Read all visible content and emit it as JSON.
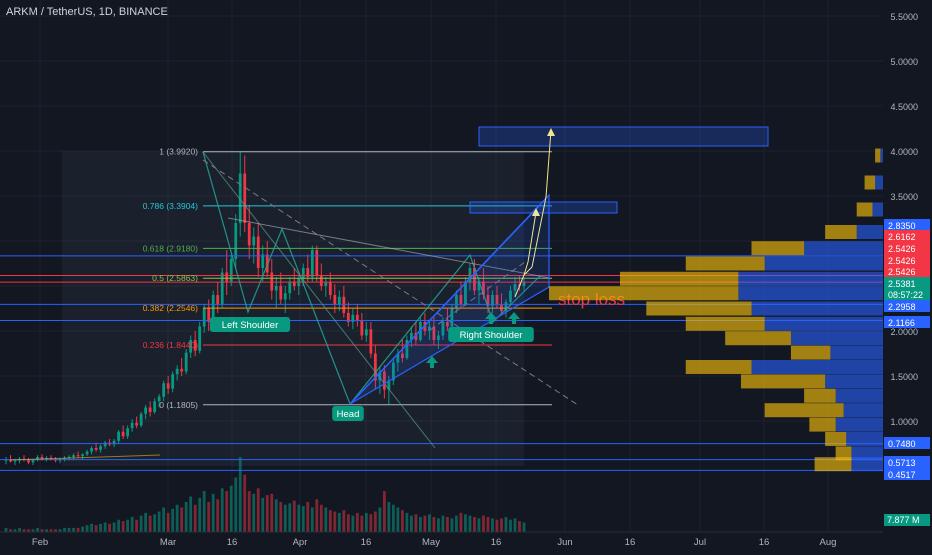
{
  "header": {
    "symbol": "ARKM / TetherUS, 1D, BINANCE"
  },
  "chart_data": {
    "type": "candlestick",
    "x_ticks": [
      "Feb",
      "Mar",
      "16",
      "Apr",
      "16",
      "May",
      "16",
      "Jun",
      "16",
      "Jul",
      "16",
      "Aug"
    ],
    "y_ticks": [
      "5.5000",
      "5.0000",
      "4.5000",
      "4.0000",
      "3.5000",
      "3.0000",
      "2.5000",
      "2.0000",
      "1.5000",
      "1.0000"
    ],
    "ylim": [
      0.35,
      5.65
    ],
    "price_badges": [
      {
        "label": "2.8350",
        "color": "#2962ff"
      },
      {
        "label": "2.6162",
        "color": "#f23645"
      },
      {
        "label": "2.5426",
        "color": "#f23645"
      },
      {
        "label": "2.5426",
        "color": "#f23645"
      },
      {
        "label": "2.5426",
        "color": "#f23645"
      },
      {
        "label": "2.5381",
        "color": "#089981"
      },
      {
        "label": "08:57:22",
        "color": "#089981"
      },
      {
        "label": "2.2958",
        "color": "#2962ff"
      },
      {
        "label": "2.1166",
        "color": "#2962ff"
      },
      {
        "label": "0.7480",
        "color": "#2962ff"
      },
      {
        "label": "0.5713",
        "color": "#2962ff"
      },
      {
        "label": "0.4517",
        "color": "#2962ff"
      }
    ],
    "fib_levels": [
      {
        "ratio": "1",
        "price": 3.992,
        "label": "1 (3.9920)",
        "color": "#b2b5be"
      },
      {
        "ratio": "0.786",
        "price": 3.3904,
        "label": "0.786 (3.3904)",
        "color": "#26c6da"
      },
      {
        "ratio": "0.618",
        "price": 2.918,
        "label": "0.618 (2.9180)",
        "color": "#4caf50"
      },
      {
        "ratio": "0.5",
        "price": 2.5863,
        "label": "0.5 (2.5863)",
        "color": "#8bc34a"
      },
      {
        "ratio": "0.382",
        "price": 2.2546,
        "label": "0.382 (2.2546)",
        "color": "#ff9800"
      },
      {
        "ratio": "0.236",
        "price": 1.844,
        "label": "0.236 (1.8440)",
        "color": "#f23645"
      },
      {
        "ratio": "0",
        "price": 1.1805,
        "label": "0 (1.1805)",
        "color": "#b2b5be"
      }
    ],
    "horizontal_lines": [
      {
        "price": 2.835,
        "color": "#2962ff"
      },
      {
        "price": 2.6162,
        "color": "#f23645"
      },
      {
        "price": 2.5426,
        "color": "#f23645"
      },
      {
        "price": 2.2958,
        "color": "#2962ff"
      },
      {
        "price": 2.1166,
        "color": "#2962ff"
      },
      {
        "price": 0.748,
        "color": "#2962ff"
      },
      {
        "price": 0.5713,
        "color": "#2962ff"
      },
      {
        "price": 0.4517,
        "color": "#2962ff"
      }
    ],
    "annotations": [
      "Left Shoulder",
      "Head",
      "Right Shoulder",
      "stop loss"
    ],
    "volume_badge": "7.877 M",
    "candles": [
      {
        "o": 0.56,
        "h": 0.6,
        "l": 0.52,
        "c": 0.57
      },
      {
        "o": 0.57,
        "h": 0.62,
        "l": 0.54,
        "c": 0.55
      },
      {
        "o": 0.55,
        "h": 0.58,
        "l": 0.51,
        "c": 0.56
      },
      {
        "o": 0.56,
        "h": 0.6,
        "l": 0.53,
        "c": 0.58
      },
      {
        "o": 0.58,
        "h": 0.62,
        "l": 0.55,
        "c": 0.57
      },
      {
        "o": 0.57,
        "h": 0.59,
        "l": 0.52,
        "c": 0.54
      },
      {
        "o": 0.54,
        "h": 0.58,
        "l": 0.51,
        "c": 0.57
      },
      {
        "o": 0.57,
        "h": 0.62,
        "l": 0.55,
        "c": 0.6
      },
      {
        "o": 0.6,
        "h": 0.63,
        "l": 0.56,
        "c": 0.58
      },
      {
        "o": 0.58,
        "h": 0.61,
        "l": 0.55,
        "c": 0.59
      },
      {
        "o": 0.59,
        "h": 0.62,
        "l": 0.56,
        "c": 0.58
      },
      {
        "o": 0.58,
        "h": 0.6,
        "l": 0.54,
        "c": 0.56
      },
      {
        "o": 0.56,
        "h": 0.59,
        "l": 0.53,
        "c": 0.58
      },
      {
        "o": 0.58,
        "h": 0.61,
        "l": 0.55,
        "c": 0.59
      },
      {
        "o": 0.59,
        "h": 0.62,
        "l": 0.56,
        "c": 0.6
      },
      {
        "o": 0.6,
        "h": 0.64,
        "l": 0.57,
        "c": 0.62
      },
      {
        "o": 0.62,
        "h": 0.66,
        "l": 0.59,
        "c": 0.61
      },
      {
        "o": 0.61,
        "h": 0.64,
        "l": 0.58,
        "c": 0.63
      },
      {
        "o": 0.63,
        "h": 0.68,
        "l": 0.61,
        "c": 0.66
      },
      {
        "o": 0.66,
        "h": 0.72,
        "l": 0.63,
        "c": 0.7
      },
      {
        "o": 0.7,
        "h": 0.76,
        "l": 0.66,
        "c": 0.68
      },
      {
        "o": 0.68,
        "h": 0.74,
        "l": 0.65,
        "c": 0.72
      },
      {
        "o": 0.72,
        "h": 0.78,
        "l": 0.69,
        "c": 0.76
      },
      {
        "o": 0.76,
        "h": 0.8,
        "l": 0.72,
        "c": 0.74
      },
      {
        "o": 0.74,
        "h": 0.8,
        "l": 0.71,
        "c": 0.78
      },
      {
        "o": 0.78,
        "h": 0.9,
        "l": 0.75,
        "c": 0.88
      },
      {
        "o": 0.88,
        "h": 0.95,
        "l": 0.8,
        "c": 0.83
      },
      {
        "o": 0.83,
        "h": 0.95,
        "l": 0.8,
        "c": 0.92
      },
      {
        "o": 0.92,
        "h": 1.02,
        "l": 0.88,
        "c": 0.98
      },
      {
        "o": 0.98,
        "h": 1.05,
        "l": 0.92,
        "c": 0.95
      },
      {
        "o": 0.95,
        "h": 1.1,
        "l": 0.93,
        "c": 1.08
      },
      {
        "o": 1.08,
        "h": 1.18,
        "l": 1.02,
        "c": 1.15
      },
      {
        "o": 1.15,
        "h": 1.22,
        "l": 1.05,
        "c": 1.1
      },
      {
        "o": 1.1,
        "h": 1.25,
        "l": 1.08,
        "c": 1.22
      },
      {
        "o": 1.22,
        "h": 1.3,
        "l": 1.15,
        "c": 1.27
      },
      {
        "o": 1.27,
        "h": 1.45,
        "l": 1.22,
        "c": 1.42
      },
      {
        "o": 1.42,
        "h": 1.5,
        "l": 1.3,
        "c": 1.36
      },
      {
        "o": 1.36,
        "h": 1.55,
        "l": 1.32,
        "c": 1.52
      },
      {
        "o": 1.52,
        "h": 1.62,
        "l": 1.45,
        "c": 1.58
      },
      {
        "o": 1.58,
        "h": 1.7,
        "l": 1.5,
        "c": 1.55
      },
      {
        "o": 1.55,
        "h": 1.8,
        "l": 1.52,
        "c": 1.76
      },
      {
        "o": 1.76,
        "h": 1.95,
        "l": 1.7,
        "c": 1.9
      },
      {
        "o": 1.9,
        "h": 2.0,
        "l": 1.72,
        "c": 1.78
      },
      {
        "o": 1.78,
        "h": 2.1,
        "l": 1.75,
        "c": 2.05
      },
      {
        "o": 2.05,
        "h": 2.3,
        "l": 1.98,
        "c": 2.25
      },
      {
        "o": 2.25,
        "h": 2.35,
        "l": 2.0,
        "c": 2.1
      },
      {
        "o": 2.1,
        "h": 2.45,
        "l": 2.05,
        "c": 2.4
      },
      {
        "o": 2.4,
        "h": 2.55,
        "l": 2.2,
        "c": 2.3
      },
      {
        "o": 2.3,
        "h": 2.7,
        "l": 2.25,
        "c": 2.65
      },
      {
        "o": 2.65,
        "h": 2.9,
        "l": 2.4,
        "c": 2.55
      },
      {
        "o": 2.55,
        "h": 2.85,
        "l": 2.5,
        "c": 2.8
      },
      {
        "o": 2.8,
        "h": 3.3,
        "l": 2.7,
        "c": 3.2
      },
      {
        "o": 3.2,
        "h": 4.0,
        "l": 3.05,
        "c": 3.75
      },
      {
        "o": 3.75,
        "h": 3.95,
        "l": 3.1,
        "c": 3.2
      },
      {
        "o": 3.2,
        "h": 3.4,
        "l": 2.8,
        "c": 2.95
      },
      {
        "o": 2.95,
        "h": 3.15,
        "l": 2.75,
        "c": 3.05
      },
      {
        "o": 3.05,
        "h": 3.2,
        "l": 2.6,
        "c": 2.7
      },
      {
        "o": 2.7,
        "h": 2.95,
        "l": 2.55,
        "c": 2.85
      },
      {
        "o": 2.85,
        "h": 3.0,
        "l": 2.6,
        "c": 2.65
      },
      {
        "o": 2.65,
        "h": 2.8,
        "l": 2.35,
        "c": 2.45
      },
      {
        "o": 2.45,
        "h": 2.6,
        "l": 2.25,
        "c": 2.5
      },
      {
        "o": 2.5,
        "h": 2.65,
        "l": 2.3,
        "c": 2.35
      },
      {
        "o": 2.35,
        "h": 2.5,
        "l": 2.2,
        "c": 2.42
      },
      {
        "o": 2.42,
        "h": 2.6,
        "l": 2.35,
        "c": 2.55
      },
      {
        "o": 2.55,
        "h": 2.7,
        "l": 2.45,
        "c": 2.5
      },
      {
        "o": 2.5,
        "h": 2.62,
        "l": 2.4,
        "c": 2.58
      },
      {
        "o": 2.58,
        "h": 2.75,
        "l": 2.5,
        "c": 2.7
      },
      {
        "o": 2.7,
        "h": 2.85,
        "l": 2.55,
        "c": 2.6
      },
      {
        "o": 2.6,
        "h": 2.95,
        "l": 2.55,
        "c": 2.9
      },
      {
        "o": 2.9,
        "h": 2.95,
        "l": 2.55,
        "c": 2.62
      },
      {
        "o": 2.62,
        "h": 2.75,
        "l": 2.45,
        "c": 2.5
      },
      {
        "o": 2.5,
        "h": 2.6,
        "l": 2.38,
        "c": 2.55
      },
      {
        "o": 2.55,
        "h": 2.65,
        "l": 2.35,
        "c": 2.4
      },
      {
        "o": 2.4,
        "h": 2.52,
        "l": 2.2,
        "c": 2.3
      },
      {
        "o": 2.3,
        "h": 2.45,
        "l": 2.22,
        "c": 2.38
      },
      {
        "o": 2.38,
        "h": 2.5,
        "l": 2.15,
        "c": 2.2
      },
      {
        "o": 2.2,
        "h": 2.32,
        "l": 2.05,
        "c": 2.1
      },
      {
        "o": 2.1,
        "h": 2.25,
        "l": 2.02,
        "c": 2.18
      },
      {
        "o": 2.18,
        "h": 2.3,
        "l": 2.05,
        "c": 2.12
      },
      {
        "o": 2.12,
        "h": 2.2,
        "l": 1.9,
        "c": 1.95
      },
      {
        "o": 1.95,
        "h": 2.1,
        "l": 1.88,
        "c": 2.02
      },
      {
        "o": 2.02,
        "h": 2.1,
        "l": 1.7,
        "c": 1.75
      },
      {
        "o": 1.75,
        "h": 1.85,
        "l": 1.35,
        "c": 1.45
      },
      {
        "o": 1.45,
        "h": 1.6,
        "l": 1.3,
        "c": 1.55
      },
      {
        "o": 1.55,
        "h": 1.62,
        "l": 1.25,
        "c": 1.35
      },
      {
        "o": 1.35,
        "h": 1.5,
        "l": 1.18,
        "c": 1.45
      },
      {
        "o": 1.45,
        "h": 1.7,
        "l": 1.4,
        "c": 1.65
      },
      {
        "o": 1.65,
        "h": 1.8,
        "l": 1.55,
        "c": 1.75
      },
      {
        "o": 1.75,
        "h": 1.9,
        "l": 1.65,
        "c": 1.7
      },
      {
        "o": 1.7,
        "h": 1.95,
        "l": 1.68,
        "c": 1.9
      },
      {
        "o": 1.9,
        "h": 2.05,
        "l": 1.82,
        "c": 1.98
      },
      {
        "o": 1.98,
        "h": 2.1,
        "l": 1.85,
        "c": 1.9
      },
      {
        "o": 1.9,
        "h": 2.15,
        "l": 1.88,
        "c": 2.1
      },
      {
        "o": 2.1,
        "h": 2.2,
        "l": 1.95,
        "c": 2.0
      },
      {
        "o": 2.0,
        "h": 2.12,
        "l": 1.9,
        "c": 2.05
      },
      {
        "o": 2.05,
        "h": 2.15,
        "l": 1.85,
        "c": 1.9
      },
      {
        "o": 1.9,
        "h": 2.0,
        "l": 1.8,
        "c": 1.95
      },
      {
        "o": 1.95,
        "h": 2.15,
        "l": 1.9,
        "c": 2.1
      },
      {
        "o": 2.1,
        "h": 2.25,
        "l": 2.0,
        "c": 2.05
      },
      {
        "o": 2.05,
        "h": 2.3,
        "l": 2.02,
        "c": 2.25
      },
      {
        "o": 2.25,
        "h": 2.45,
        "l": 2.2,
        "c": 2.4
      },
      {
        "o": 2.4,
        "h": 2.55,
        "l": 2.25,
        "c": 2.3
      },
      {
        "o": 2.3,
        "h": 2.6,
        "l": 2.28,
        "c": 2.55
      },
      {
        "o": 2.55,
        "h": 2.75,
        "l": 2.45,
        "c": 2.7
      },
      {
        "o": 2.7,
        "h": 2.8,
        "l": 2.4,
        "c": 2.45
      },
      {
        "o": 2.45,
        "h": 2.6,
        "l": 2.3,
        "c": 2.55
      },
      {
        "o": 2.55,
        "h": 2.7,
        "l": 2.35,
        "c": 2.4
      },
      {
        "o": 2.4,
        "h": 2.5,
        "l": 2.2,
        "c": 2.28
      },
      {
        "o": 2.28,
        "h": 2.45,
        "l": 2.2,
        "c": 2.4
      },
      {
        "o": 2.4,
        "h": 2.5,
        "l": 2.25,
        "c": 2.3
      },
      {
        "o": 2.3,
        "h": 2.42,
        "l": 2.18,
        "c": 2.22
      },
      {
        "o": 2.22,
        "h": 2.35,
        "l": 2.15,
        "c": 2.32
      },
      {
        "o": 2.32,
        "h": 2.5,
        "l": 2.28,
        "c": 2.45
      },
      {
        "o": 2.45,
        "h": 2.6,
        "l": 2.38,
        "c": 2.52
      },
      {
        "o": 2.52,
        "h": 2.62,
        "l": 2.45,
        "c": 2.5
      },
      {
        "o": 2.5,
        "h": 2.6,
        "l": 2.45,
        "c": 2.54
      }
    ],
    "volumes": [
      3,
      2,
      2,
      3,
      2,
      2,
      2,
      3,
      2,
      2,
      2,
      2,
      2,
      3,
      3,
      3,
      3,
      4,
      5,
      6,
      5,
      6,
      7,
      6,
      7,
      9,
      8,
      9,
      11,
      9,
      12,
      14,
      12,
      13,
      15,
      18,
      14,
      17,
      20,
      18,
      22,
      26,
      20,
      25,
      30,
      22,
      28,
      24,
      32,
      30,
      34,
      40,
      55,
      42,
      30,
      28,
      32,
      25,
      27,
      28,
      24,
      22,
      20,
      21,
      23,
      20,
      19,
      22,
      18,
      24,
      20,
      18,
      16,
      15,
      14,
      16,
      13,
      12,
      14,
      12,
      14,
      13,
      15,
      18,
      30,
      22,
      20,
      18,
      16,
      14,
      12,
      13,
      11,
      12,
      13,
      11,
      10,
      12,
      11,
      10,
      12,
      14,
      13,
      12,
      11,
      10,
      12,
      11,
      10,
      9,
      10,
      11,
      9,
      10,
      8,
      7
    ],
    "volume_profile": [
      {
        "price": 3.95,
        "up": 0.02,
        "down": 0.01
      },
      {
        "price": 3.65,
        "up": 0.04,
        "down": 0.03
      },
      {
        "price": 3.35,
        "up": 0.06,
        "down": 0.04
      },
      {
        "price": 3.1,
        "up": 0.12,
        "down": 0.1
      },
      {
        "price": 2.92,
        "up": 0.2,
        "down": 0.3
      },
      {
        "price": 2.75,
        "up": 0.3,
        "down": 0.45
      },
      {
        "price": 2.58,
        "up": 0.45,
        "down": 0.55
      },
      {
        "price": 2.42,
        "up": 0.72,
        "down": 0.55
      },
      {
        "price": 2.25,
        "up": 0.4,
        "down": 0.5
      },
      {
        "price": 2.08,
        "up": 0.3,
        "down": 0.45
      },
      {
        "price": 1.92,
        "up": 0.25,
        "down": 0.35
      },
      {
        "price": 1.76,
        "up": 0.15,
        "down": 0.2
      },
      {
        "price": 1.6,
        "up": 0.25,
        "down": 0.5
      },
      {
        "price": 1.44,
        "up": 0.32,
        "down": 0.22
      },
      {
        "price": 1.28,
        "up": 0.12,
        "down": 0.18
      },
      {
        "price": 1.12,
        "up": 0.3,
        "down": 0.15
      },
      {
        "price": 0.96,
        "up": 0.1,
        "down": 0.18
      },
      {
        "price": 0.8,
        "up": 0.08,
        "down": 0.14
      },
      {
        "price": 0.64,
        "up": 0.06,
        "down": 0.12
      },
      {
        "price": 0.52,
        "up": 0.14,
        "down": 0.12
      }
    ]
  }
}
